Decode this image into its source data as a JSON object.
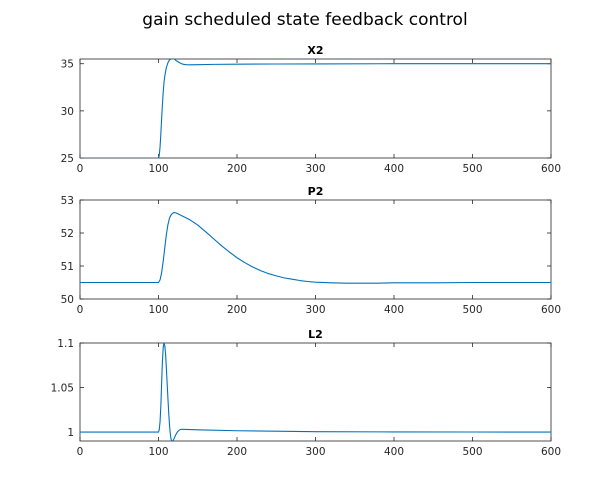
{
  "figure": {
    "title": "gain scheduled state feedback control"
  },
  "chart_data": [
    {
      "type": "line",
      "title": "X2",
      "xlabel": "",
      "ylabel": "",
      "xlim": [
        0,
        600
      ],
      "ylim": [
        25,
        35.5
      ],
      "xticks": [
        0,
        100,
        200,
        300,
        400,
        500,
        600
      ],
      "yticks": [
        25,
        30,
        35
      ],
      "grid": false,
      "color": "#0072bd",
      "x": [
        0,
        100,
        101,
        102,
        103,
        104,
        105,
        106,
        107,
        108,
        110,
        112,
        114,
        116,
        118,
        120,
        123,
        127,
        131,
        135,
        140,
        150,
        170,
        200,
        250,
        300,
        400,
        500,
        600
      ],
      "y": [
        25.0,
        25.0,
        25.3,
        26.2,
        27.6,
        29.2,
        30.7,
        32.0,
        33.0,
        33.7,
        34.6,
        35.1,
        35.4,
        35.5,
        35.55,
        35.5,
        35.3,
        35.1,
        34.95,
        34.9,
        34.88,
        34.9,
        34.93,
        34.95,
        34.97,
        34.98,
        35.0,
        35.0,
        35.0
      ]
    },
    {
      "type": "line",
      "title": "P2",
      "xlabel": "",
      "ylabel": "",
      "xlim": [
        0,
        600
      ],
      "ylim": [
        50,
        53
      ],
      "xticks": [
        0,
        100,
        200,
        300,
        400,
        500,
        600
      ],
      "yticks": [
        50,
        51,
        52,
        53
      ],
      "grid": false,
      "color": "#0072bd",
      "x": [
        0,
        100,
        102,
        104,
        106,
        108,
        110,
        112,
        114,
        116,
        118,
        120,
        122,
        125,
        130,
        140,
        150,
        160,
        170,
        180,
        190,
        200,
        210,
        220,
        230,
        240,
        250,
        260,
        270,
        280,
        290,
        300,
        320,
        340,
        360,
        380,
        400,
        450,
        500,
        550,
        600
      ],
      "y": [
        50.5,
        50.5,
        50.58,
        50.8,
        51.15,
        51.55,
        51.95,
        52.25,
        52.45,
        52.55,
        52.6,
        52.62,
        52.61,
        52.58,
        52.52,
        52.4,
        52.24,
        52.04,
        51.83,
        51.62,
        51.43,
        51.25,
        51.1,
        50.97,
        50.86,
        50.77,
        50.7,
        50.64,
        50.6,
        50.56,
        50.53,
        50.51,
        50.49,
        50.48,
        50.48,
        50.48,
        50.49,
        50.49,
        50.5,
        50.5,
        50.5
      ]
    },
    {
      "type": "line",
      "title": "L2",
      "xlabel": "",
      "ylabel": "",
      "xlim": [
        0,
        600
      ],
      "ylim": [
        0.99,
        1.1
      ],
      "xticks": [
        0,
        100,
        200,
        300,
        400,
        500,
        600
      ],
      "yticks": [
        1,
        1.05,
        1.1
      ],
      "grid": false,
      "color": "#0072bd",
      "x": [
        0,
        100,
        101,
        102,
        103,
        104,
        105,
        106,
        107,
        108,
        109,
        110,
        111,
        112,
        113,
        114,
        115,
        116,
        117,
        118,
        119,
        120,
        122,
        124,
        126,
        128,
        130,
        135,
        140,
        150,
        200,
        300,
        400,
        500,
        600
      ],
      "y": [
        1.0,
        1.0,
        1.003,
        1.012,
        1.03,
        1.055,
        1.08,
        1.095,
        1.1,
        1.097,
        1.088,
        1.072,
        1.055,
        1.038,
        1.022,
        1.008,
        0.998,
        0.992,
        0.99,
        0.99,
        0.991,
        0.993,
        0.997,
        1.0,
        1.002,
        1.003,
        1.0032,
        1.003,
        1.0028,
        1.0025,
        1.0015,
        1.0005,
        1.0002,
        1.0001,
        1.0
      ]
    }
  ]
}
